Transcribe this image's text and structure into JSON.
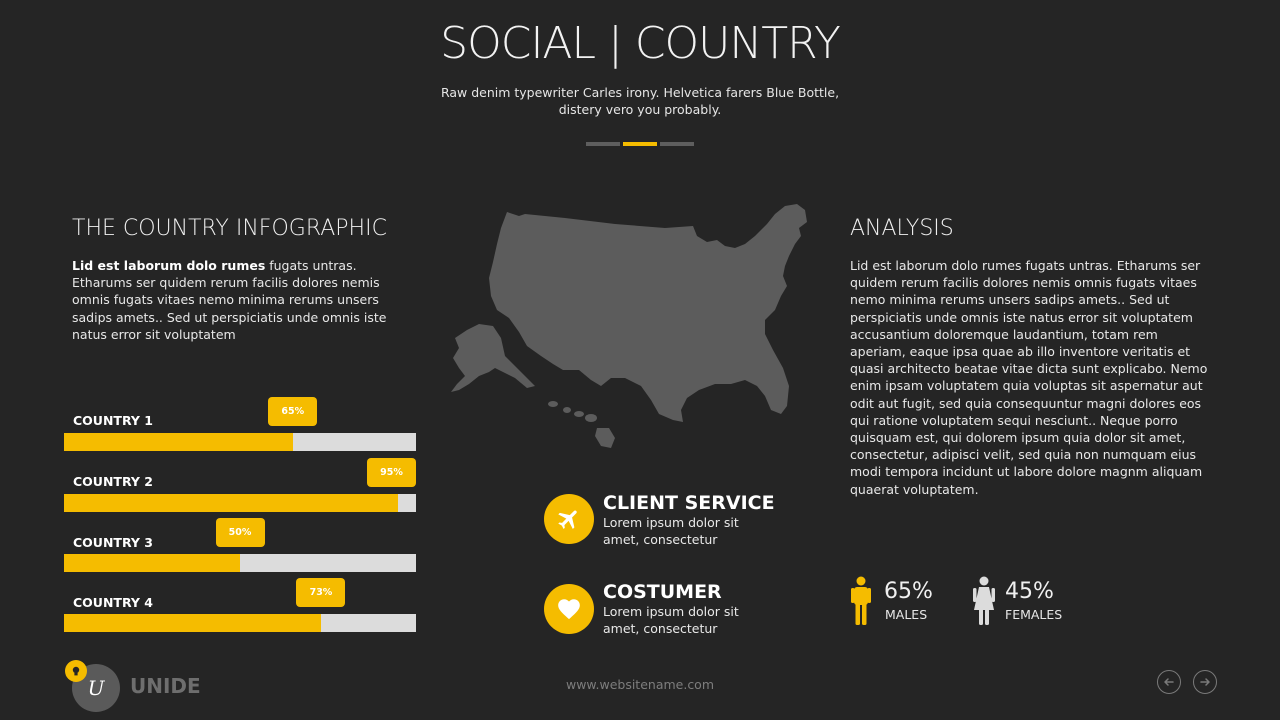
{
  "header": {
    "title": "SOCIAL | COUNTRY",
    "subtitle_line1": "Raw denim typewriter Carles irony. Helvetica farers Blue Bottle,",
    "subtitle_line2": "distery vero you probably."
  },
  "colors": {
    "accent": "#f5bc00",
    "background": "#252525",
    "track": "#dcdcdc",
    "map": "#5c5c5c",
    "muted": "#6e6e6e"
  },
  "left": {
    "heading": "THE COUNTRY INFOGRAPHIC",
    "lead_bold": "Lid est laborum dolo rumes",
    "lead_rest": " fugats untras. Etharums ser quidem rerum facilis dolores nemis omnis fugats vitaes nemo minima rerums unsers sadips amets.. Sed ut perspiciatis unde omnis iste natus error sit voluptatem"
  },
  "bars": [
    {
      "label": "COUNTRY 1",
      "value": 65,
      "badge": "65%"
    },
    {
      "label": "COUNTRY 2",
      "value": 95,
      "badge": "95%"
    },
    {
      "label": "COUNTRY 3",
      "value": 50,
      "badge": "50%"
    },
    {
      "label": "COUNTRY 4",
      "value": 73,
      "badge": "73%"
    }
  ],
  "map_icon": "usa-map",
  "services": [
    {
      "icon": "airplane-icon",
      "title": "CLIENT SERVICE",
      "line1": "Lorem ipsum dolor sit",
      "line2": "amet, consectetur"
    },
    {
      "icon": "heart-icon",
      "title": "COSTUMER",
      "line1": "Lorem ipsum dolor sit",
      "line2": "amet, consectetur"
    }
  ],
  "analysis": {
    "heading": "ANALYSIS",
    "text": "Lid est laborum dolo rumes fugats untras. Etharums ser quidem rerum facilis dolores nemis omnis fugats vitaes nemo minima rerums unsers sadips amets.. Sed ut perspiciatis unde omnis iste natus error sit voluptatem accusantium doloremque laudantium, totam rem aperiam, eaque ipsa quae ab illo inventore veritatis et quasi architecto beatae vitae dicta sunt explicabo. Nemo enim ipsam voluptatem quia voluptas sit aspernatur aut odit aut fugit, sed quia consequuntur magni dolores eos qui ratione voluptatem sequi nesciunt.. Neque porro quisquam est, qui dolorem ipsum quia dolor sit amet, consectetur, adipisci velit, sed quia non numquam eius modi tempora incidunt ut labore dolore magnm aliquam quaerat voluptatem."
  },
  "gender": {
    "males_pct": "65%",
    "males_label": "MALES",
    "females_pct": "45%",
    "females_label": "FEMALES"
  },
  "footer": {
    "logo_letter": "U",
    "brand": "UNIDE",
    "website": "www.websitename.com"
  }
}
